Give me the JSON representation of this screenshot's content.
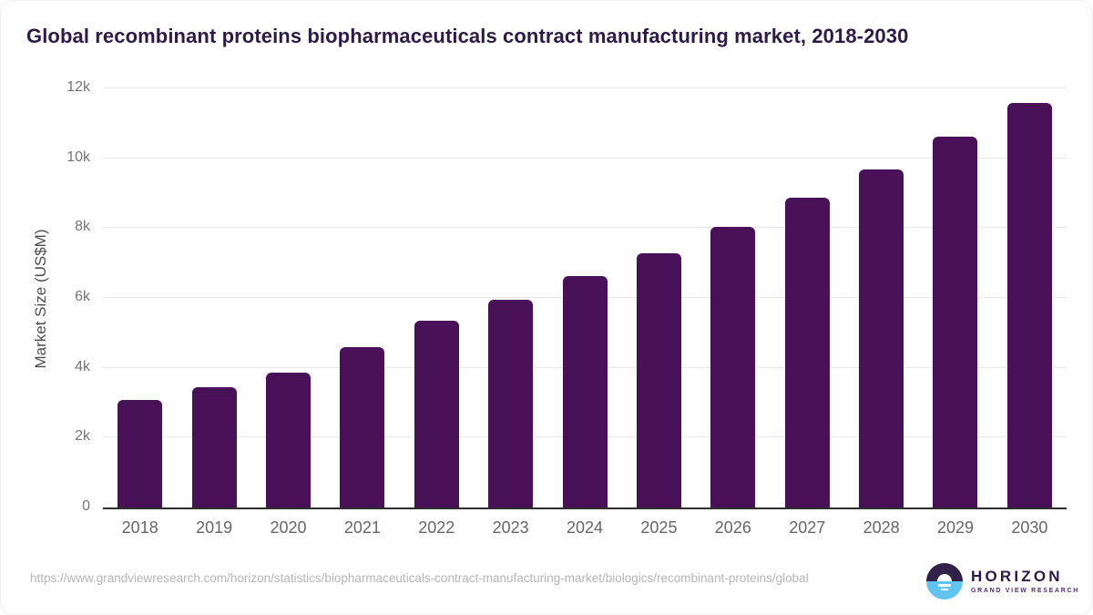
{
  "title": "Global recombinant proteins biopharmaceuticals contract manufacturing market, 2018-2030",
  "colors": {
    "bar": "#491158",
    "title": "#2e1a47",
    "grid": "#e8e8e8",
    "axis_text": "#757575",
    "logo_dark": "#2f2147",
    "logo_blue": "#62c3f0"
  },
  "chart_data": {
    "type": "bar",
    "title": "Global recombinant proteins biopharmaceuticals contract manufacturing market, 2018-2030",
    "xlabel": "",
    "ylabel": "Market Size (US$M)",
    "categories": [
      "2018",
      "2019",
      "2020",
      "2021",
      "2022",
      "2023",
      "2024",
      "2025",
      "2026",
      "2027",
      "2028",
      "2029",
      "2030"
    ],
    "values": [
      3070,
      3450,
      3870,
      4580,
      5350,
      5960,
      6620,
      7280,
      8040,
      8860,
      9690,
      10610,
      11590
    ],
    "ylim": [
      0,
      12000
    ],
    "yticks": [
      {
        "value": 0,
        "label": "0"
      },
      {
        "value": 2000,
        "label": "2k"
      },
      {
        "value": 4000,
        "label": "4k"
      },
      {
        "value": 6000,
        "label": "6k"
      },
      {
        "value": 8000,
        "label": "8k"
      },
      {
        "value": 10000,
        "label": "10k"
      },
      {
        "value": 12000,
        "label": "12k"
      }
    ],
    "grid": true,
    "legend": false
  },
  "footer": {
    "source_url": "https://www.grandviewresearch.com/horizon/statistics/biopharmaceuticals-contract-manufacturing-market/biologics/recombinant-proteins/global",
    "logo": {
      "name": "HORIZON",
      "subtext": "GRAND VIEW RESEARCH"
    }
  }
}
